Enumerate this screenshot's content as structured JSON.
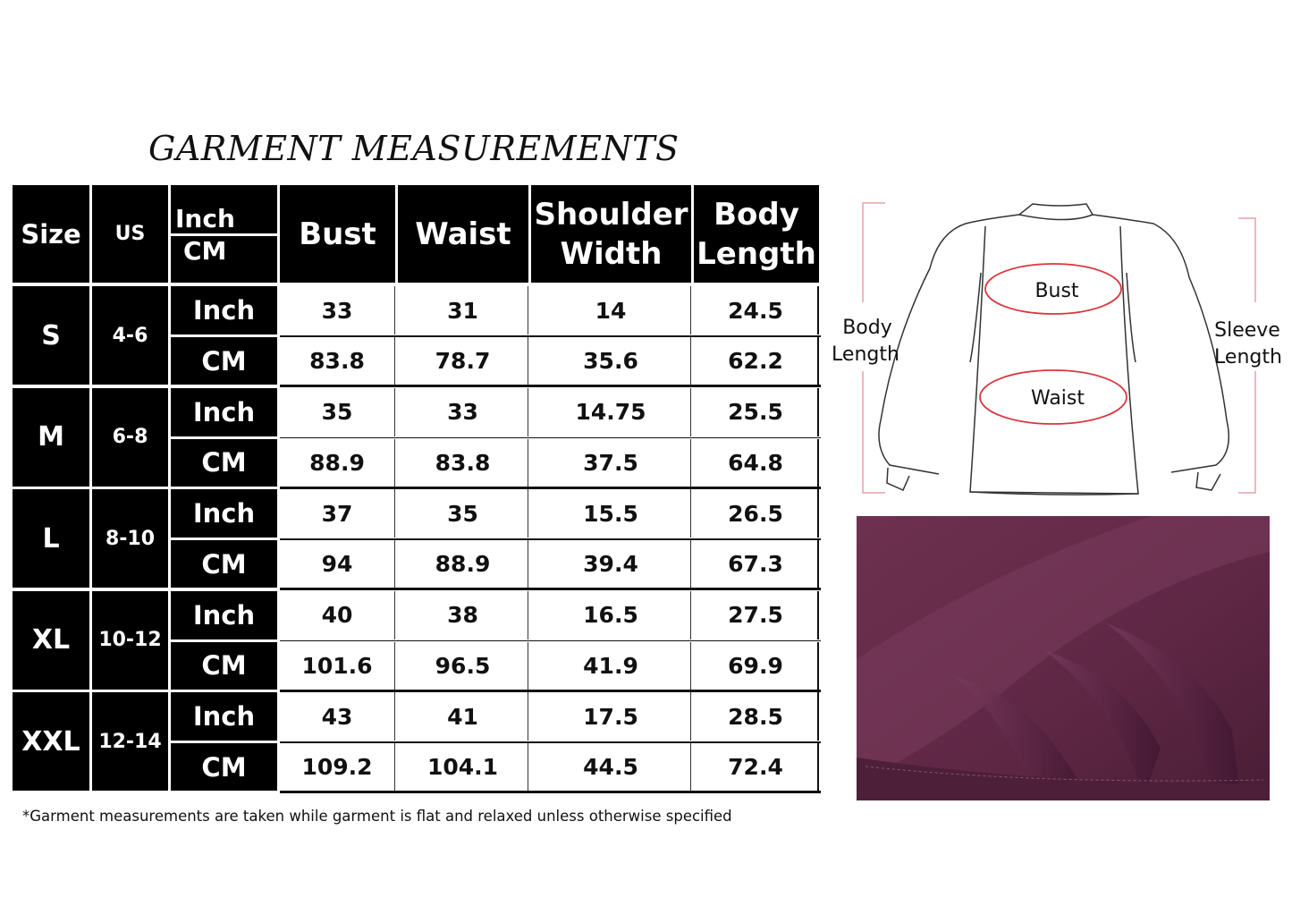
{
  "title": "GARMENT MEASUREMENTS",
  "table": {
    "headers": {
      "size": "Size",
      "us": "US",
      "unit_inch": "Inch",
      "unit_cm": "CM",
      "bust": "Bust",
      "waist": "Waist",
      "shoulder_width": "Shoulder Width",
      "body_length": "Body Length"
    },
    "rows": [
      {
        "size": "S",
        "us": "4-6",
        "inch": {
          "unit": "Inch",
          "bust": "33",
          "waist": "31",
          "shoulder": "14",
          "length": "24.5"
        },
        "cm": {
          "unit": "CM",
          "bust": "83.8",
          "waist": "78.7",
          "shoulder": "35.6",
          "length": "62.2"
        }
      },
      {
        "size": "M",
        "us": "6-8",
        "inch": {
          "unit": "Inch",
          "bust": "35",
          "waist": "33",
          "shoulder": "14.75",
          "length": "25.5"
        },
        "cm": {
          "unit": "CM",
          "bust": "88.9",
          "waist": "83.8",
          "shoulder": "37.5",
          "length": "64.8"
        }
      },
      {
        "size": "L",
        "us": "8-10",
        "inch": {
          "unit": "Inch",
          "bust": "37",
          "waist": "35",
          "shoulder": "15.5",
          "length": "26.5"
        },
        "cm": {
          "unit": "CM",
          "bust": "94",
          "waist": "88.9",
          "shoulder": "39.4",
          "length": "67.3"
        }
      },
      {
        "size": "XL",
        "us": "10-12",
        "inch": {
          "unit": "Inch",
          "bust": "40",
          "waist": "38",
          "shoulder": "16.5",
          "length": "27.5"
        },
        "cm": {
          "unit": "CM",
          "bust": "101.6",
          "waist": "96.5",
          "shoulder": "41.9",
          "length": "69.9"
        }
      },
      {
        "size": "XXL",
        "us": "12-14",
        "inch": {
          "unit": "Inch",
          "bust": "43",
          "waist": "41",
          "shoulder": "17.5",
          "length": "28.5"
        },
        "cm": {
          "unit": "CM",
          "bust": "109.2",
          "waist": "104.1",
          "shoulder": "44.5",
          "length": "72.4"
        }
      }
    ]
  },
  "footnote": "*Garment measurements are taken while garment is flat and relaxed unless otherwise specified",
  "diagram": {
    "bust": "Bust",
    "waist": "Waist",
    "body_length_1": "Body",
    "body_length_2": "Length",
    "sleeve_length_1": "Sleeve",
    "sleeve_length_2": "Length",
    "accent_color": "#d9363e",
    "bracket_color": "#e8a0a8"
  },
  "fabric": {
    "color": "#6a2d4b"
  }
}
